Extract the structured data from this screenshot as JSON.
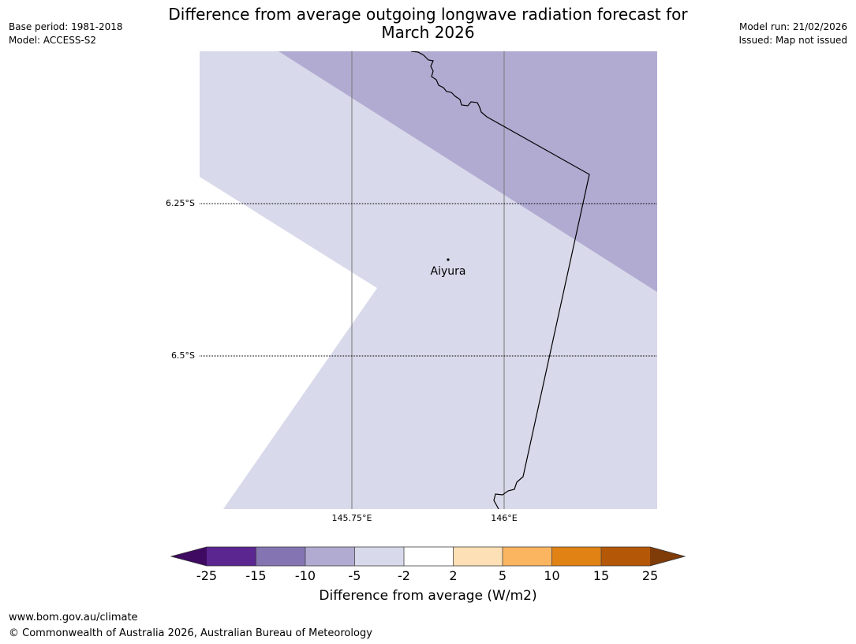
{
  "title": {
    "line1": "Difference from average outgoing longwave radiation forecast for",
    "line2": "March 2026"
  },
  "meta_left": {
    "base_period": "Base period: 1981-2018",
    "model": "Model: ACCESS-S2"
  },
  "meta_right": {
    "model_run": "Model run: 21/02/2026",
    "issued": "Issued: Map not issued"
  },
  "map": {
    "lat_labels": [
      "6.25°S",
      "6.5°S"
    ],
    "lon_labels": [
      "145.75°E",
      "146°E"
    ],
    "place": "Aiyura",
    "colors": {
      "band_minus10_minus5": "#b1abd2",
      "band_minus5_minus2": "#d8d9ea",
      "band_minus2_2": "#ffffff"
    }
  },
  "colorbar": {
    "ticks": [
      "-25",
      "-15",
      "-10",
      "-5",
      "-2",
      "2",
      "5",
      "10",
      "15",
      "25"
    ],
    "colors": [
      "#3f0a61",
      "#5b2690",
      "#8474b2",
      "#b1abd2",
      "#d8d9ea",
      "#ffffff",
      "#fde0b5",
      "#fbb560",
      "#e08214",
      "#b45707",
      "#7f3b08"
    ],
    "label": "Difference from average (W/m2)"
  },
  "footer": {
    "url": "www.bom.gov.au/climate",
    "copyright": "© Commonwealth of Australia 2026, Australian Bureau of Meteorology"
  }
}
